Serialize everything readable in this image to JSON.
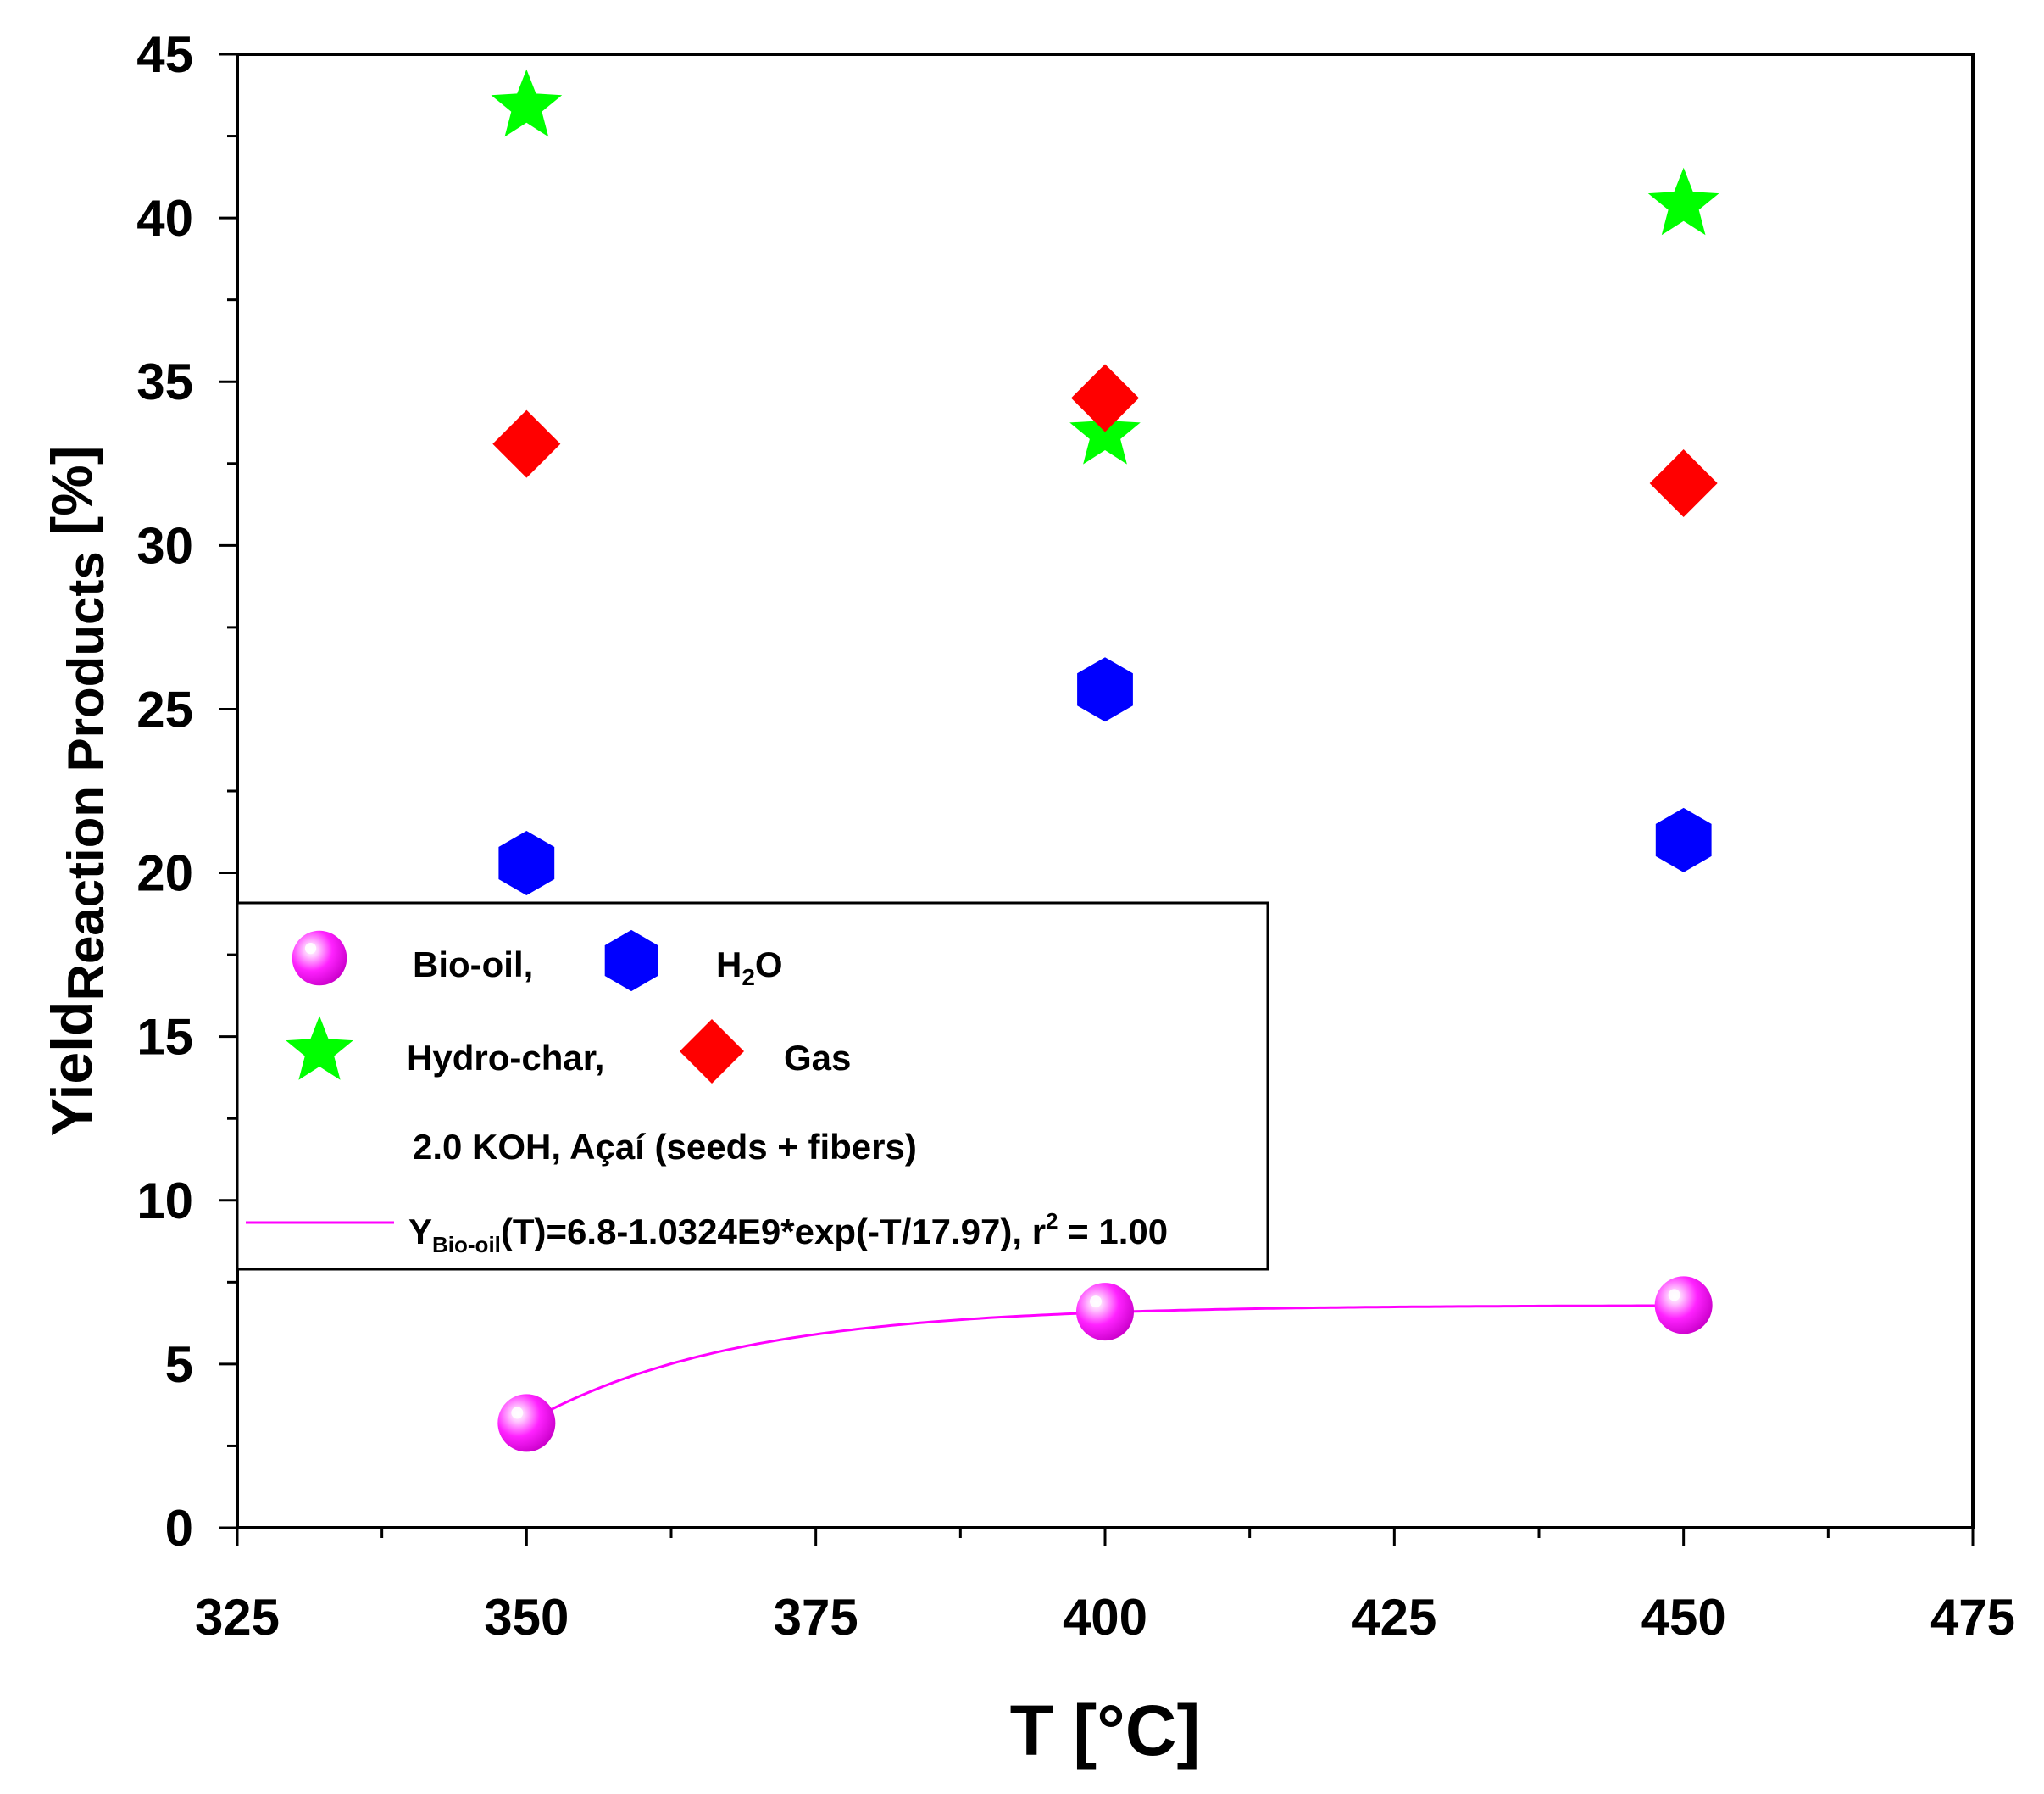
{
  "chart_data": {
    "type": "scatter",
    "x_axis": {
      "label_main": "T [°C]",
      "min": 325,
      "max": 475,
      "ticks": [
        325,
        350,
        375,
        400,
        425,
        450,
        475
      ],
      "tick_labels": [
        "325",
        "350",
        "375",
        "400",
        "425",
        "450",
        "475"
      ],
      "minor_step": 12.5
    },
    "y_axis": {
      "label_main": "Yield",
      "label_sub": "Reaction Products",
      "label_unit": " [%]",
      "min": 0,
      "max": 45,
      "ticks": [
        0,
        5,
        10,
        15,
        20,
        25,
        30,
        35,
        40,
        45
      ],
      "tick_labels": [
        "0",
        "5",
        "10",
        "15",
        "20",
        "25",
        "30",
        "35",
        "40",
        "45"
      ],
      "minor_step": 2.5
    },
    "series": [
      {
        "name": "Bio-oil,",
        "marker": "sphere",
        "color": "#ff00ff",
        "x": [
          350,
          400,
          450
        ],
        "y": [
          3.2,
          6.6,
          6.8
        ]
      },
      {
        "name": "H2O",
        "name_main": "H",
        "name_sub": "2",
        "name_tail": "O",
        "marker": "hexagon",
        "color": "#0000ff",
        "x": [
          350,
          400,
          450
        ],
        "y": [
          20.3,
          25.6,
          21.0
        ]
      },
      {
        "name": "Hydro-char,",
        "marker": "star",
        "color": "#00ff00",
        "x": [
          350,
          400,
          450
        ],
        "y": [
          43.4,
          33.4,
          40.4
        ]
      },
      {
        "name": "Gas",
        "marker": "diamond",
        "color": "#ff0000",
        "x": [
          350,
          400,
          450
        ],
        "y": [
          33.1,
          34.5,
          31.9
        ]
      }
    ],
    "legend_note": "2.0 KOH, Açaí (seeds + fibers)",
    "fit": {
      "color": "#ff00ff",
      "label_y": "Y",
      "label_y_sub": "Bio-oil",
      "label_formula": "(T)=6.8-1.0324E9*exp(-T/17.97), r",
      "label_r_sup": "2",
      "label_tail": " = 1.00",
      "a": 6.8,
      "b": 1032400000.0,
      "t0": 17.97,
      "x_range": [
        350,
        450
      ]
    },
    "legend_position": "lower-left",
    "grid": false
  }
}
